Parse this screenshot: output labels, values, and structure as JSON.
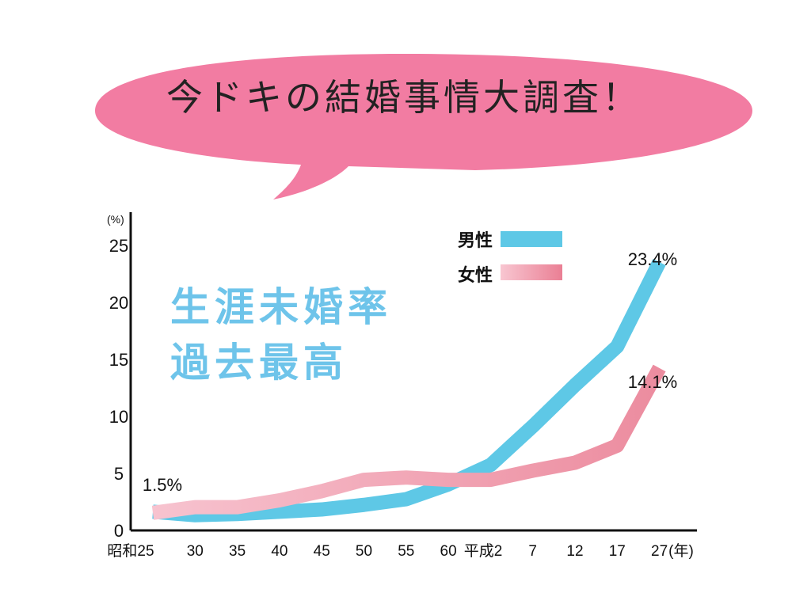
{
  "headline": "今ドキの結婚事情大調査！",
  "overlay": {
    "line1": "生涯未婚率",
    "line2": "過去最高"
  },
  "colors": {
    "bubble": "#f27ca2",
    "male": "#5ec8e6",
    "female": "#f2a4b6",
    "overlay": "#6ec4ea"
  },
  "chart_data": {
    "type": "line",
    "unit_label": "(%)",
    "xunit": "(年)",
    "categories": [
      "昭和25",
      "30",
      "35",
      "40",
      "45",
      "50",
      "55",
      "60",
      "平成2",
      "7",
      "12",
      "17",
      "27"
    ],
    "ylim": [
      0,
      25
    ],
    "yticks": [
      "0",
      "5",
      "10",
      "15",
      "20",
      "25"
    ],
    "legend_position": "top-right",
    "series": [
      {
        "name": "男性",
        "values": [
          1.5,
          1.2,
          1.3,
          1.5,
          1.7,
          2.1,
          2.6,
          3.9,
          5.6,
          9.0,
          12.6,
          16.0,
          23.4
        ]
      },
      {
        "name": "女性",
        "values": [
          1.4,
          1.9,
          1.9,
          2.5,
          3.3,
          4.3,
          4.5,
          4.3,
          4.3,
          5.1,
          5.8,
          7.3,
          14.1
        ]
      }
    ],
    "annotations": [
      {
        "text": "1.5%"
      },
      {
        "text": "23.4%"
      },
      {
        "text": "14.1%"
      }
    ]
  }
}
